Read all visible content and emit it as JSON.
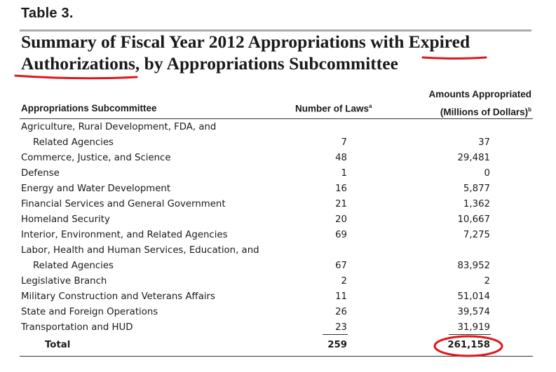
{
  "table_label": "Table 3.",
  "title": "Summary of Fiscal Year 2012 Appropriations with Expired Authorizations, by Appropriations Subcommittee",
  "headers": {
    "subcommittee": "Appropriations Subcommittee",
    "laws": "Number of Laws",
    "laws_note": "a",
    "amount_line1": "Amounts Appropriated",
    "amount_line2": "(Millions of Dollars)",
    "amount_note": "b"
  },
  "rows": [
    {
      "name": "Agriculture, Rural Development, FDA, and",
      "laws": "",
      "amount": ""
    },
    {
      "name": "Related Agencies",
      "laws": "7",
      "amount": "37",
      "indent": true
    },
    {
      "name": "Commerce, Justice, and Science",
      "laws": "48",
      "amount": "29,481"
    },
    {
      "name": "Defense",
      "laws": "1",
      "amount": "0"
    },
    {
      "name": "Energy and Water Development",
      "laws": "16",
      "amount": "5,877"
    },
    {
      "name": "Financial Services and General Government",
      "laws": "21",
      "amount": "1,362"
    },
    {
      "name": "Homeland Security",
      "laws": "20",
      "amount": "10,667"
    },
    {
      "name": "Interior, Environment, and Related Agencies",
      "laws": "69",
      "amount": "7,275"
    },
    {
      "name": "Labor, Health and Human Services, Education, and",
      "laws": "",
      "amount": ""
    },
    {
      "name": "Related Agencies",
      "laws": "67",
      "amount": "83,952",
      "indent": true
    },
    {
      "name": "Legislative Branch",
      "laws": "2",
      "amount": "2"
    },
    {
      "name": "Military Construction and Veterans Affairs",
      "laws": "11",
      "amount": "51,014"
    },
    {
      "name": "State and Foreign Operations",
      "laws": "26",
      "amount": "39,574"
    },
    {
      "name": "Transportation and HUD",
      "laws": "23",
      "amount": "31,919"
    }
  ],
  "total": {
    "label": "Total",
    "laws": "259",
    "amount": "261,158"
  },
  "colors": {
    "annotation": "#e0161b"
  }
}
